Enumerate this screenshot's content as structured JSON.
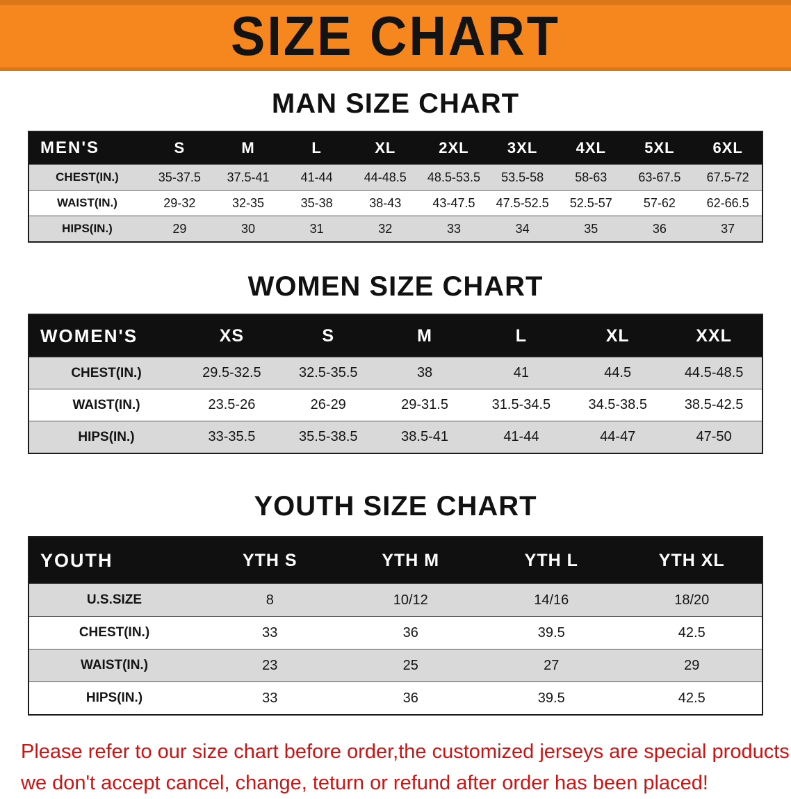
{
  "banner": {
    "title": "SIZE CHART",
    "bg_color": "#f6871e",
    "text_color": "#131313"
  },
  "sections": [
    {
      "heading": "MAN SIZE CHART",
      "table": {
        "label": "MEN'S",
        "columns": [
          "S",
          "M",
          "L",
          "XL",
          "2XL",
          "3XL",
          "4XL",
          "5XL",
          "6XL"
        ],
        "rows": [
          {
            "label": "CHEST(IN.)",
            "values": [
              "35-37.5",
              "37.5-41",
              "41-44",
              "44-48.5",
              "48.5-53.5",
              "53.5-58",
              "58-63",
              "63-67.5",
              "67.5-72"
            ]
          },
          {
            "label": "WAIST(IN.)",
            "values": [
              "29-32",
              "32-35",
              "35-38",
              "38-43",
              "43-47.5",
              "47.5-52.5",
              "52.5-57",
              "57-62",
              "62-66.5"
            ]
          },
          {
            "label": "HIPS(IN.)",
            "values": [
              "29",
              "30",
              "31",
              "32",
              "33",
              "34",
              "35",
              "36",
              "37"
            ]
          }
        ]
      }
    },
    {
      "heading": "WOMEN SIZE CHART",
      "table": {
        "label": "WOMEN'S",
        "columns": [
          "XS",
          "S",
          "M",
          "L",
          "XL",
          "XXL"
        ],
        "rows": [
          {
            "label": "CHEST(IN.)",
            "values": [
              "29.5-32.5",
              "32.5-35.5",
              "38",
              "41",
              "44.5",
              "44.5-48.5"
            ]
          },
          {
            "label": "WAIST(IN.)",
            "values": [
              "23.5-26",
              "26-29",
              "29-31.5",
              "31.5-34.5",
              "34.5-38.5",
              "38.5-42.5"
            ]
          },
          {
            "label": "HIPS(IN.)",
            "values": [
              "33-35.5",
              "35.5-38.5",
              "38.5-41",
              "41-44",
              "44-47",
              "47-50"
            ]
          }
        ]
      }
    },
    {
      "heading": "YOUTH SIZE CHART",
      "table": {
        "label": "YOUTH",
        "columns": [
          "YTH S",
          "YTH M",
          "YTH L",
          "YTH XL"
        ],
        "rows": [
          {
            "label": "U.S.SIZE",
            "values": [
              "8",
              "10/12",
              "14/16",
              "18/20"
            ]
          },
          {
            "label": "CHEST(IN.)",
            "values": [
              "33",
              "36",
              "39.5",
              "42.5"
            ]
          },
          {
            "label": "WAIST(IN.)",
            "values": [
              "23",
              "25",
              "27",
              "29"
            ]
          },
          {
            "label": "HIPS(IN.)",
            "values": [
              "33",
              "36",
              "39.5",
              "42.5"
            ]
          }
        ]
      }
    }
  ],
  "footer": {
    "color": "#d01212",
    "lines": [
      "Please refer to our size chart before order,the customized jerseys are special products,",
      "we don't accept cancel, change, teturn or refund after order has been placed!"
    ]
  }
}
